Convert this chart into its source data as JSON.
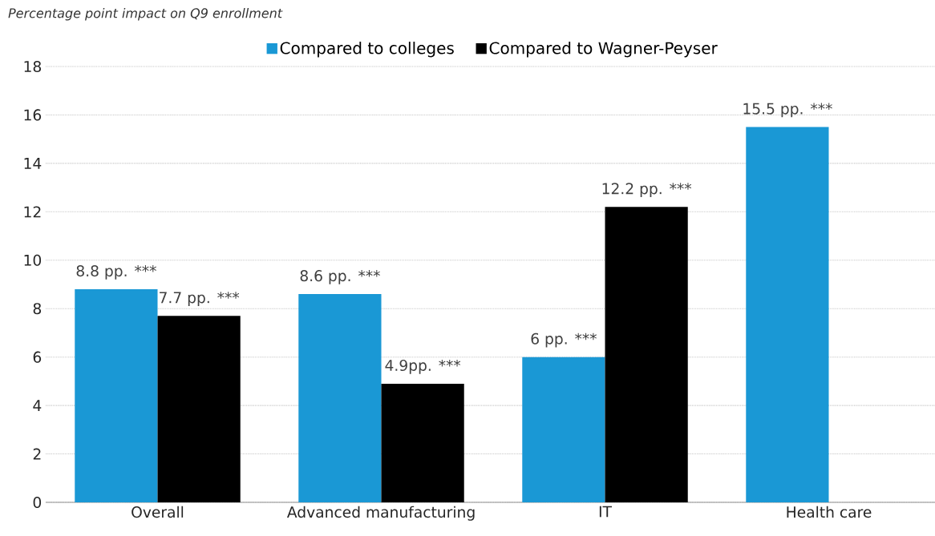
{
  "chart_data": {
    "type": "bar",
    "ylabel": "Percentage point impact on Q9 enrollment",
    "categories": [
      "Overall",
      "Advanced manufacturing",
      "IT",
      "Health care"
    ],
    "series": [
      {
        "name": "Compared to colleges",
        "color": "#1a98d5",
        "values": [
          8.8,
          8.6,
          6,
          15.5
        ],
        "value_labels": [
          "8.8 pp. ***",
          "8.6 pp. ***",
          "6 pp. ***",
          "15.5 pp. ***"
        ]
      },
      {
        "name": "Compared to Wagner-Peyser",
        "color": "#000000",
        "values": [
          7.7,
          4.9,
          12.2,
          null
        ],
        "value_labels": [
          "7.7 pp. ***",
          "4.9pp. ***",
          "12.2 pp. ***",
          null
        ]
      }
    ],
    "ylim": [
      0,
      18
    ],
    "yticks": [
      0,
      2,
      4,
      6,
      8,
      10,
      12,
      14,
      16,
      18
    ],
    "grid": "y",
    "legend": "top"
  }
}
